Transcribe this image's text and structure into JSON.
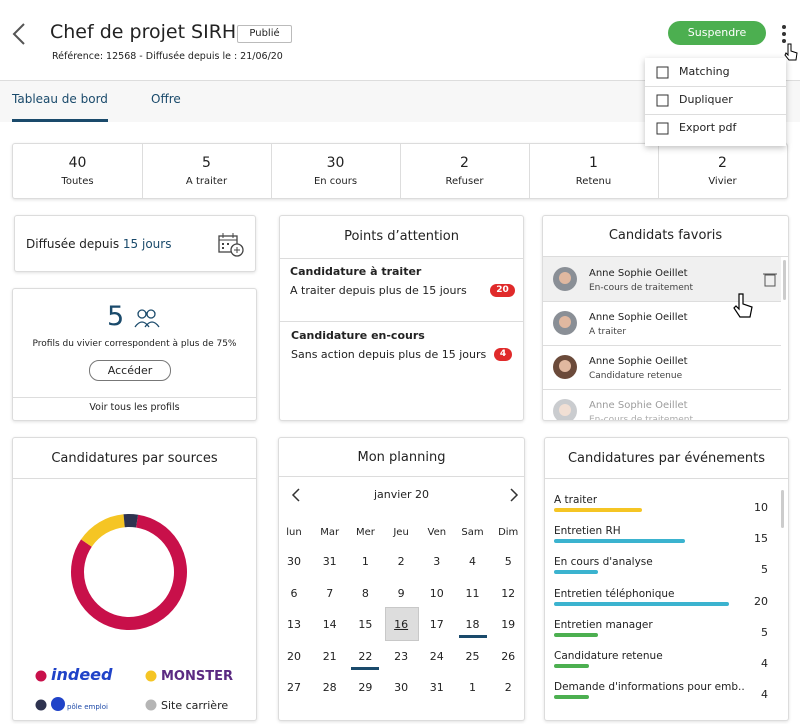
{
  "header": {
    "title": "Chef de projet SIRH",
    "status": "Publié",
    "meta": "Référence: 12568 - Diffusée depuis le : 21/06/20",
    "action": "Suspendre"
  },
  "menu": [
    "Matching",
    "Dupliquer",
    "Export pdf"
  ],
  "tabs": [
    "Tableau de bord",
    "Offre"
  ],
  "counts": [
    {
      "value": 40,
      "label": "Toutes"
    },
    {
      "value": 5,
      "label": "A traiter"
    },
    {
      "value": 30,
      "label": "En cours"
    },
    {
      "value": 2,
      "label": "Refuser"
    },
    {
      "value": 1,
      "label": "Retenu"
    },
    {
      "value": 2,
      "label": "Vivier"
    }
  ],
  "diffusion": {
    "text": "Diffusée depuis",
    "highlight": "15 jours"
  },
  "vivier": {
    "count": 5,
    "text": "Profils du vivier correspondent à plus de 75%",
    "button": "Accéder",
    "link": "Voir tous les profils"
  },
  "attention": {
    "title": "Points d’attention",
    "items": [
      {
        "title": "Candidature à traiter",
        "text": "A traiter depuis plus de 15 jours",
        "badge": 20
      },
      {
        "title": "Candidature en-cours",
        "text": "Sans action depuis plus de 15 jours",
        "badge": 4
      }
    ]
  },
  "favoris": {
    "title": "Candidats favoris",
    "items": [
      {
        "name": "Anne Sophie Oeillet",
        "status": "En-cours de traitement"
      },
      {
        "name": "Anne Sophie Oeillet",
        "status": "A traiter"
      },
      {
        "name": "Anne Sophie Oeillet",
        "status": "Candidature retenue"
      },
      {
        "name": "Anne Sophie Oeillet",
        "status": "En-cours de traitement"
      }
    ]
  },
  "sources": {
    "title": "Candidatures par sources",
    "type": "pie",
    "series": [
      {
        "name": "indeed",
        "color": "#c8104a",
        "value": 82
      },
      {
        "name": "MONSTER",
        "color": "#f5c524",
        "value": 14
      },
      {
        "name": "pôle emploi",
        "color": "#2e3350",
        "value": 4
      },
      {
        "name": "Site carrière",
        "color": "#b5b5b5",
        "value": 0
      }
    ]
  },
  "planning": {
    "title": "Mon planning",
    "month": "janvier 20",
    "weekdays": [
      "lun",
      "Mar",
      "Mer",
      "Jeu",
      "Ven",
      "Sam",
      "Dim"
    ],
    "weeks": [
      [
        30,
        31,
        1,
        2,
        3,
        4,
        5
      ],
      [
        6,
        7,
        8,
        9,
        10,
        11,
        12
      ],
      [
        13,
        14,
        15,
        {
          "value": 16,
          "today": true
        },
        17,
        {
          "value": 18,
          "event": true
        },
        19
      ],
      [
        20,
        21,
        {
          "value": 22,
          "event": true
        },
        23,
        24,
        25,
        26
      ],
      [
        27,
        28,
        29,
        30,
        31,
        1,
        2
      ]
    ]
  },
  "events": {
    "title": "Candidatures par événements",
    "max": 20,
    "items": [
      {
        "label": "A traiter",
        "value": 10,
        "color": "#f5c524"
      },
      {
        "label": "Entretien RH",
        "value": 15,
        "color": "#3bb3cf"
      },
      {
        "label": "En cours d'analyse",
        "value": 5,
        "color": "#3bb3cf"
      },
      {
        "label": "Entretien téléphonique",
        "value": 20,
        "color": "#3bb3cf"
      },
      {
        "label": "Entretien manager",
        "value": 5,
        "color": "#4caf50"
      },
      {
        "label": "Candidature retenue",
        "value": 4,
        "color": "#4caf50"
      },
      {
        "label": "Demande d'informations pour emb...",
        "value": 4,
        "color": "#4caf50"
      }
    ]
  }
}
